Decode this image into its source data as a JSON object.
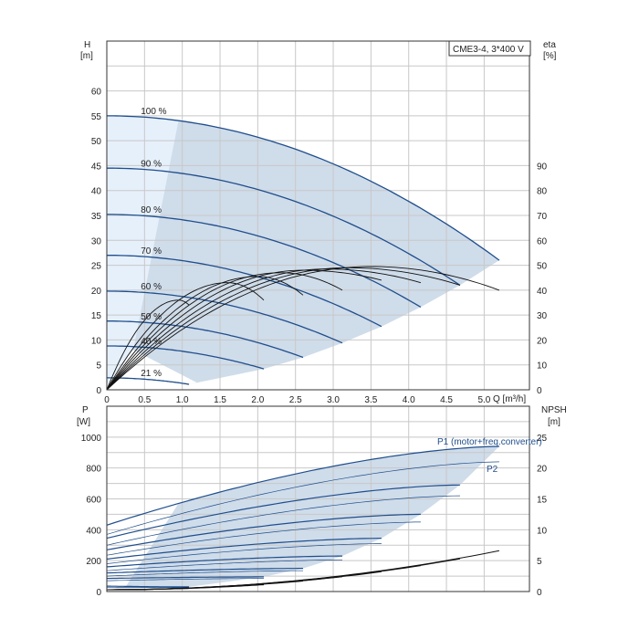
{
  "colors": {
    "curve": "#1f4e8c",
    "eta": "#111111",
    "band": "#c7d6e6",
    "band_light": "#e6f0fb",
    "grid": "#c8c8c8"
  },
  "legend_box": "CME3-4, 3*400 V",
  "chart_data": [
    {
      "type": "line",
      "panel": "head",
      "ylabel_left": "H",
      "ylabel_left_unit": "[m]",
      "ylabel_right": "eta",
      "ylabel_right_unit": "[%]",
      "xlabel": "Q [m³/h]",
      "xlim": [
        0,
        5.6
      ],
      "ylim": [
        0,
        70
      ],
      "x_ticks": [
        "0",
        "0.5",
        "1.0",
        "1.5",
        "2.0",
        "2.5",
        "3.0",
        "3.5",
        "4.0",
        "4.5",
        "5.0"
      ],
      "y_ticks": [
        "0",
        "5",
        "10",
        "15",
        "20",
        "25",
        "30",
        "35",
        "40",
        "45",
        "50",
        "55",
        "60"
      ],
      "y2_ticks": [
        "0",
        "10",
        "20",
        "30",
        "40",
        "50",
        "60",
        "70",
        "80",
        "90"
      ],
      "y2_scale": "eta [%] = 2 × H [m] value",
      "speed_curves": [
        {
          "name": "100 %",
          "h0": 55.0,
          "qmax": 5.2,
          "hend": 26.0
        },
        {
          "name": "90 %",
          "h0": 44.5,
          "qmax": 4.68,
          "hend": 21.0
        },
        {
          "name": "80 %",
          "h0": 35.2,
          "qmax": 4.16,
          "hend": 16.6
        },
        {
          "name": "70 %",
          "h0": 27.0,
          "qmax": 3.64,
          "hend": 12.7
        },
        {
          "name": "60 %",
          "h0": 19.8,
          "qmax": 3.12,
          "hend": 9.4
        },
        {
          "name": "50 %",
          "h0": 13.8,
          "qmax": 2.6,
          "hend": 6.5
        },
        {
          "name": "40 %",
          "h0": 8.8,
          "qmax": 2.08,
          "hend": 4.2
        },
        {
          "name": "21 %",
          "h0": 2.4,
          "qmax": 1.09,
          "hend": 1.1
        }
      ],
      "eta_curves": [
        {
          "qmax": 5.2,
          "peak": 49.5,
          "qpeak": 3.5,
          "end": 40
        },
        {
          "qmax": 4.68,
          "peak": 49.0,
          "qpeak": 3.2,
          "end": 42
        },
        {
          "qmax": 4.16,
          "peak": 48.5,
          "qpeak": 2.9,
          "end": 43
        },
        {
          "qmax": 3.64,
          "peak": 48.0,
          "qpeak": 2.6,
          "end": 44
        },
        {
          "qmax": 3.12,
          "peak": 47.0,
          "qpeak": 2.3,
          "end": 40
        },
        {
          "qmax": 2.6,
          "peak": 45.5,
          "qpeak": 2.0,
          "end": 38
        },
        {
          "qmax": 2.08,
          "peak": 43.0,
          "qpeak": 1.6,
          "end": 36
        },
        {
          "qmax": 1.09,
          "peak": 36.0,
          "qpeak": 0.95,
          "end": 34
        }
      ]
    },
    {
      "type": "line",
      "panel": "power",
      "ylabel_left": "P",
      "ylabel_left_unit": "[W]",
      "ylabel_right": "NPSH",
      "ylabel_right_unit": "[m]",
      "xlim": [
        0,
        5.6
      ],
      "ylim": [
        0,
        1200
      ],
      "y_ticks": [
        "0",
        "200",
        "400",
        "600",
        "800",
        "1000"
      ],
      "y2_ticks": [
        "0",
        "5",
        "10",
        "15",
        "20",
        "25"
      ],
      "y2_max": 30,
      "series_labels": [
        "P1 (motor+freq.converter)",
        "P2"
      ],
      "p1_curves": [
        {
          "qmax": 5.2,
          "p0": 430,
          "pend": 940
        },
        {
          "qmax": 4.68,
          "p0": 345,
          "pend": 690
        },
        {
          "qmax": 4.16,
          "p0": 270,
          "pend": 500
        },
        {
          "qmax": 3.64,
          "p0": 210,
          "pend": 345
        },
        {
          "qmax": 3.12,
          "p0": 160,
          "pend": 230
        },
        {
          "qmax": 2.6,
          "p0": 120,
          "pend": 150
        },
        {
          "qmax": 2.08,
          "p0": 85,
          "pend": 95
        },
        {
          "qmax": 1.09,
          "p0": 35,
          "pend": 30
        }
      ],
      "p2_curves": [
        {
          "qmax": 5.2,
          "p0": 370,
          "pend": 840
        },
        {
          "qmax": 4.68,
          "p0": 300,
          "pend": 620
        },
        {
          "qmax": 4.16,
          "p0": 235,
          "pend": 450
        },
        {
          "qmax": 3.64,
          "p0": 180,
          "pend": 310
        },
        {
          "qmax": 3.12,
          "p0": 135,
          "pend": 205
        },
        {
          "qmax": 2.6,
          "p0": 100,
          "pend": 135
        },
        {
          "qmax": 2.08,
          "p0": 70,
          "pend": 85
        },
        {
          "qmax": 1.09,
          "p0": 28,
          "pend": 25
        }
      ],
      "npsh_curves": [
        {
          "qmax": 5.2,
          "n0": 0.3,
          "nend": 6.6
        },
        {
          "qmax": 4.68,
          "n0": 0.3,
          "nend": 5.3
        },
        {
          "qmax": 4.16,
          "n0": 0.3,
          "nend": 4.2
        },
        {
          "qmax": 3.64,
          "n0": 0.3,
          "nend": 3.2
        },
        {
          "qmax": 3.12,
          "n0": 0.3,
          "nend": 2.4
        },
        {
          "qmax": 2.6,
          "n0": 0.3,
          "nend": 1.7
        },
        {
          "qmax": 2.08,
          "n0": 0.3,
          "nend": 1.1
        },
        {
          "qmax": 1.09,
          "n0": 0.3,
          "nend": 0.5
        }
      ]
    }
  ]
}
